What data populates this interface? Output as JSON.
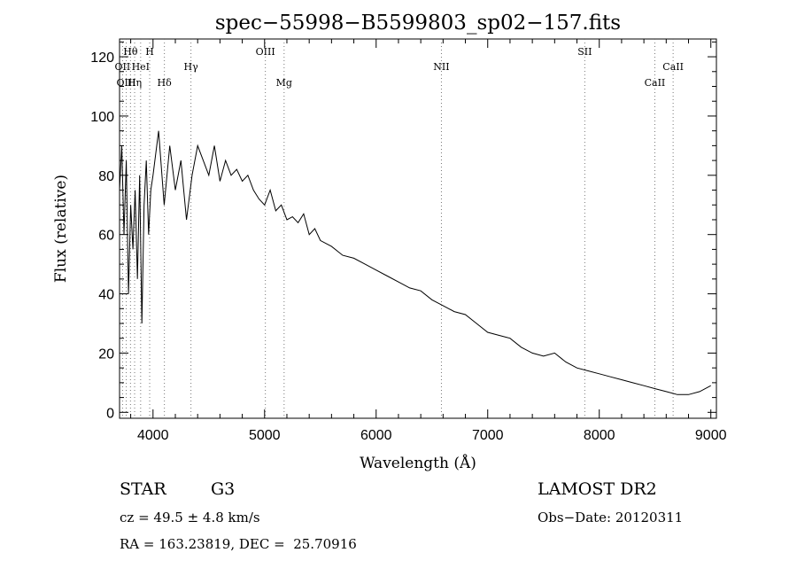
{
  "chart_data": {
    "type": "line",
    "title": "spec−55998−B5599803_sp02−157.fits",
    "xlabel": "Wavelength (Å)",
    "ylabel": "Flux (relative)",
    "xlim": [
      3700,
      9050
    ],
    "ylim": [
      -2,
      126
    ],
    "x_ticks": [
      4000,
      5000,
      6000,
      7000,
      8000,
      9000
    ],
    "y_ticks": [
      0,
      20,
      40,
      60,
      80,
      100,
      120
    ],
    "grid": false,
    "series": [
      {
        "x": [
          3700,
          3720,
          3740,
          3760,
          3780,
          3800,
          3820,
          3840,
          3860,
          3880,
          3900,
          3920,
          3940,
          3960,
          3980,
          4000,
          4050,
          4100,
          4150,
          4200,
          4250,
          4300,
          4350,
          4400,
          4450,
          4500,
          4550,
          4600,
          4650,
          4700,
          4750,
          4800,
          4850,
          4900,
          4950,
          5000,
          5050,
          5100,
          5150,
          5200,
          5250,
          5300,
          5350,
          5400,
          5450,
          5500,
          5600,
          5700,
          5800,
          5900,
          6000,
          6100,
          6200,
          6300,
          6400,
          6500,
          6600,
          6700,
          6800,
          6900,
          7000,
          7100,
          7200,
          7300,
          7400,
          7500,
          7600,
          7700,
          7800,
          7900,
          8000,
          8100,
          8200,
          8300,
          8400,
          8500,
          8600,
          8700,
          8800,
          8900,
          9000
        ],
        "y": [
          75,
          90,
          60,
          85,
          40,
          70,
          55,
          75,
          45,
          80,
          30,
          70,
          85,
          60,
          75,
          80,
          95,
          70,
          90,
          75,
          85,
          65,
          80,
          90,
          85,
          80,
          90,
          78,
          85,
          80,
          82,
          78,
          80,
          75,
          72,
          70,
          75,
          68,
          70,
          65,
          66,
          64,
          67,
          60,
          62,
          58,
          56,
          53,
          52,
          50,
          48,
          46,
          44,
          42,
          41,
          38,
          36,
          34,
          33,
          30,
          27,
          26,
          25,
          22,
          20,
          19,
          20,
          17,
          15,
          14,
          13,
          12,
          11,
          10,
          9,
          8,
          7,
          6,
          6,
          7,
          9
        ]
      }
    ],
    "lines": [
      {
        "label": "Hθ",
        "x": 3798,
        "row": 0
      },
      {
        "label": "H",
        "x": 3970,
        "row": 0
      },
      {
        "label": "OIII",
        "x": 5007,
        "row": 0
      },
      {
        "label": "SII",
        "x": 7870,
        "row": 0
      },
      {
        "label": "OII",
        "x": 3727,
        "row": 1
      },
      {
        "label": "HeI",
        "x": 3889,
        "row": 1
      },
      {
        "label": "Hγ",
        "x": 4340,
        "row": 1
      },
      {
        "label": "NII",
        "x": 6585,
        "row": 1
      },
      {
        "label": "CaII",
        "x": 8662,
        "row": 1
      },
      {
        "label": "OIII",
        "x": 3760,
        "row": 2
      },
      {
        "label": "Hη",
        "x": 3835,
        "row": 2
      },
      {
        "label": "Hδ",
        "x": 4102,
        "row": 2
      },
      {
        "label": "Mg",
        "x": 5175,
        "row": 2
      },
      {
        "label": "CaII",
        "x": 8498,
        "row": 2
      }
    ],
    "line_markers_x": [
      3727,
      3760,
      3798,
      3835,
      3889,
      3970,
      4102,
      4340,
      5007,
      5175,
      6585,
      7870,
      8498,
      8662
    ]
  },
  "info": {
    "class_label": "STAR",
    "subclass": "G3",
    "survey": "LAMOST DR2",
    "cz": "cz = 49.5 ± 4.8 km/s",
    "obs_date": "Obs−Date: 20120311",
    "coords": "RA = 163.23819, DEC =  25.70916"
  }
}
